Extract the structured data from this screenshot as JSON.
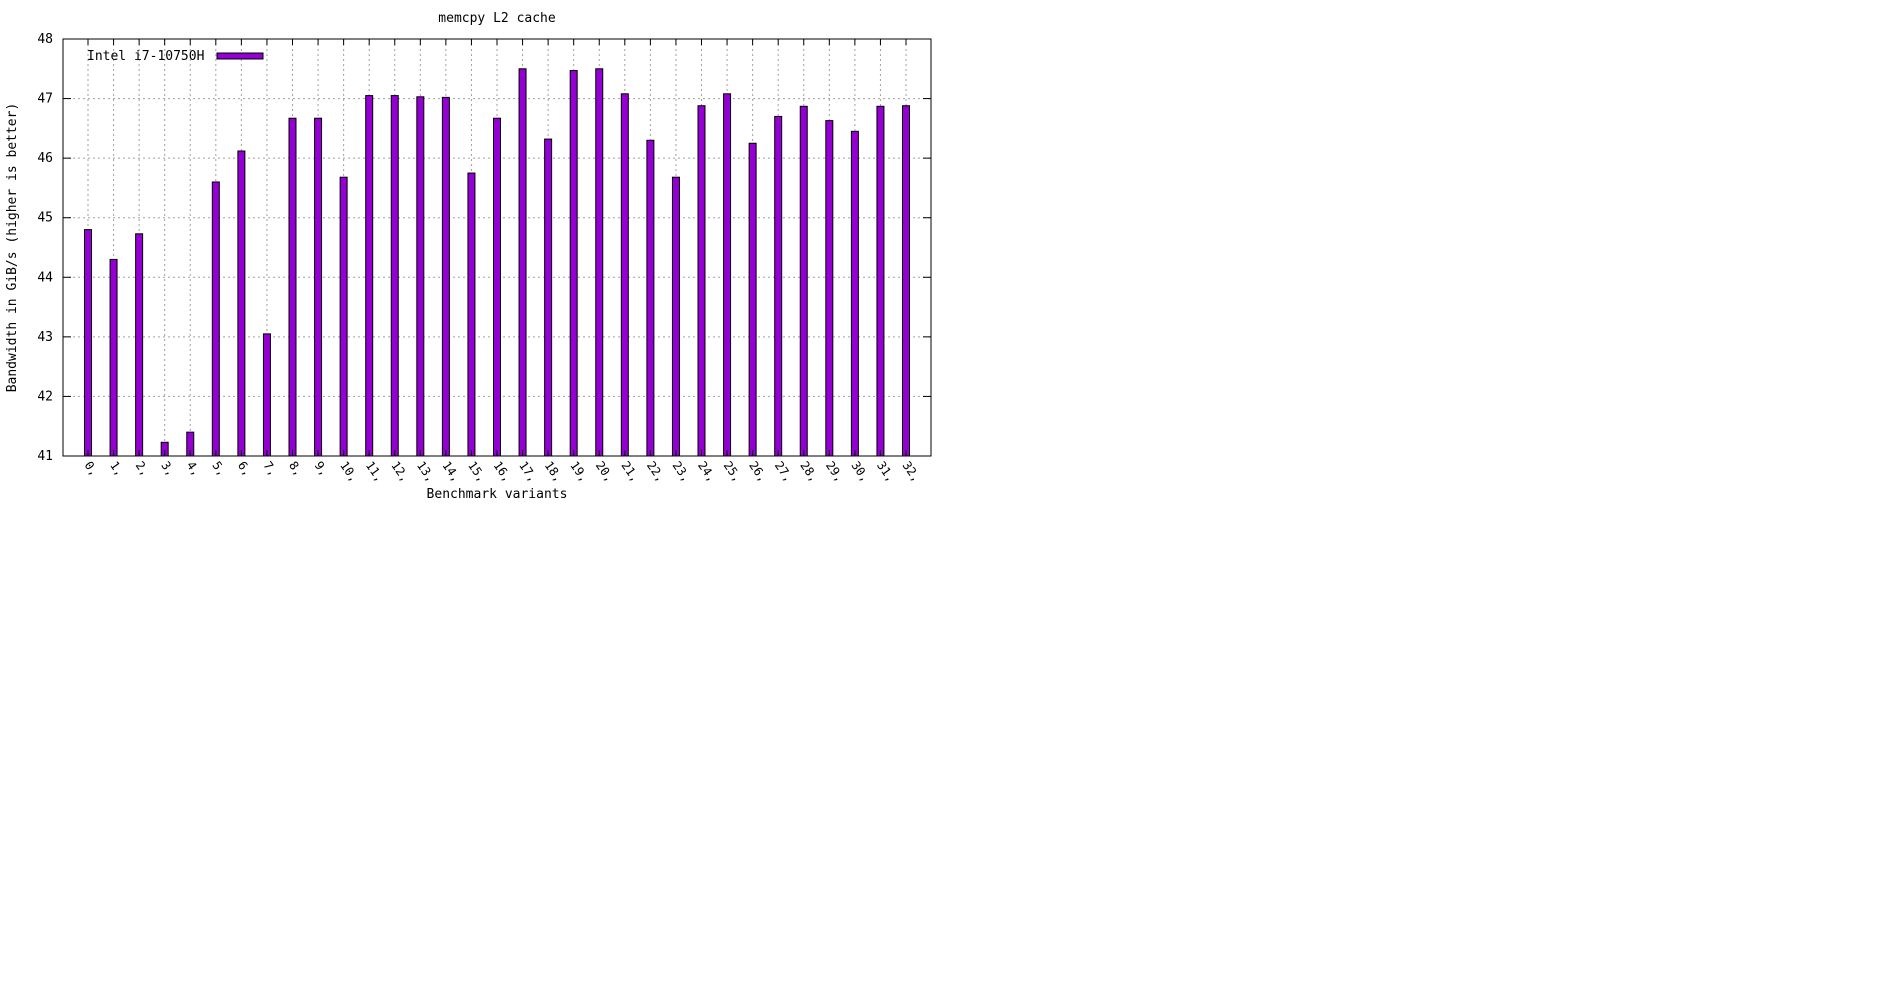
{
  "chart_data": {
    "type": "bar",
    "title": "memcpy L2 cache",
    "xlabel": "Benchmark variants",
    "ylabel": "Bandwidth in GiB/s (higher is better)",
    "ylim": [
      41,
      48
    ],
    "yticks": [
      41,
      42,
      43,
      44,
      45,
      46,
      47,
      48
    ],
    "grid": true,
    "legend_position": "top-left",
    "categories": [
      "0,",
      "1,",
      "2,",
      "3,",
      "4,",
      "5,",
      "6,",
      "7,",
      "8,",
      "9,",
      "10,",
      "11,",
      "12,",
      "13,",
      "14,",
      "15,",
      "16,",
      "17,",
      "18,",
      "19,",
      "20,",
      "21,",
      "22,",
      "23,",
      "24,",
      "25,",
      "26,",
      "27,",
      "28,",
      "29,",
      "30,",
      "31,",
      "32,"
    ],
    "series": [
      {
        "name": "Intel i7-10750H",
        "color": "#9400d3",
        "values": [
          44.8,
          44.3,
          44.73,
          41.23,
          41.4,
          45.6,
          46.12,
          43.05,
          46.67,
          46.67,
          45.68,
          47.05,
          47.05,
          47.03,
          47.02,
          45.75,
          46.67,
          47.5,
          46.32,
          47.47,
          47.5,
          47.08,
          46.3,
          45.68,
          46.88,
          47.08,
          46.25,
          46.7,
          46.87,
          46.63,
          46.45,
          46.87,
          46.88
        ]
      }
    ]
  }
}
